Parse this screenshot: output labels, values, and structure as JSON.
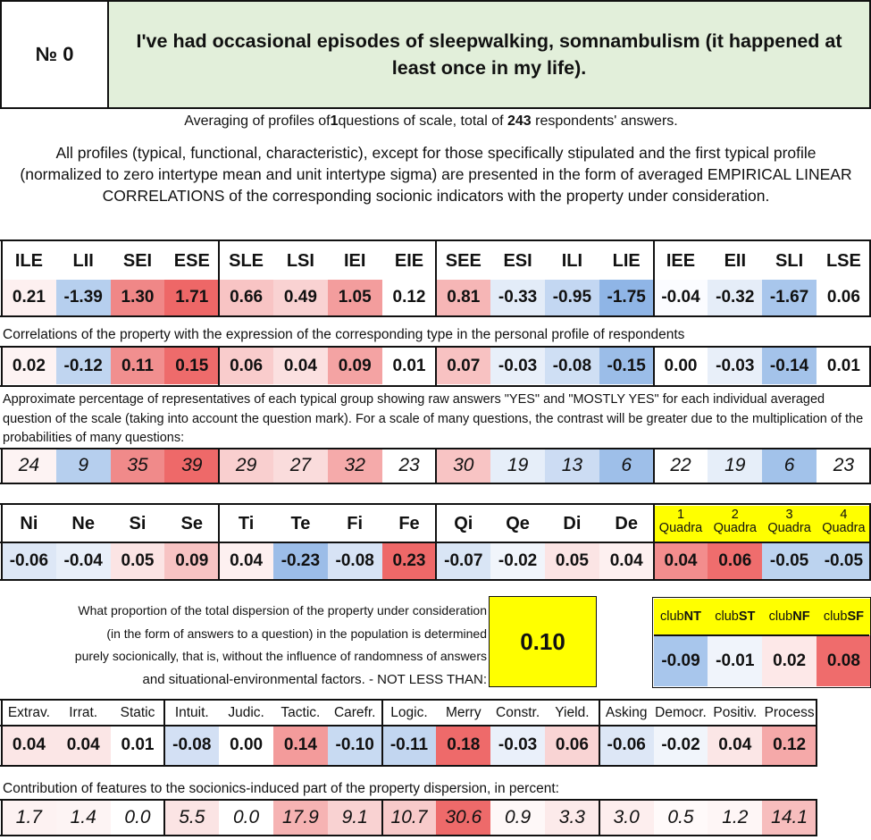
{
  "header": {
    "number_label": "№ 0",
    "question": "I've had occasional episodes of sleepwalking, somnambulism (it happened at least once in my life)."
  },
  "averaging": {
    "prefix": "Averaging of profiles of",
    "questions": "1",
    "middle": "questions of scale, total of",
    "respondents": "243",
    "suffix": "respondents' answers."
  },
  "intro_text": "All profiles (typical, functional, characteristic), except for those specifically stipulated and the first typical profile (normalized to zero intertype mean and unit intertype sigma) are presented in the form of averaged EMPIRICAL LINEAR CORRELATIONS of the corresponding socionic indicators with the property under consideration.",
  "types": {
    "labels": [
      "ILE",
      "LII",
      "SEI",
      "ESE",
      "SLE",
      "LSI",
      "IEI",
      "EIE",
      "SEE",
      "ESI",
      "ILI",
      "LIE",
      "IEE",
      "EII",
      "SLI",
      "LSE"
    ],
    "profile": [
      "0.21",
      "-1.39",
      "1.30",
      "1.71",
      "0.66",
      "0.49",
      "1.05",
      "0.12",
      "0.81",
      "-0.33",
      "-0.95",
      "-1.75",
      "-0.04",
      "-0.32",
      "-1.67",
      "0.06"
    ],
    "profile_colors": [
      "#fdf0f0",
      "#b6cfee",
      "#f08787",
      "#ee6767",
      "#f8c4c4",
      "#f9d2d2",
      "#f39d9d",
      "#ffffff",
      "#f6b6b6",
      "#e3ecf8",
      "#c3d7f2",
      "#8fb5e6",
      "#fbfcff",
      "#e5edf8",
      "#a8c6ec",
      "#ffffff"
    ],
    "corr_caption": "Correlations of the property with the expression of the corresponding type in the personal profile of respondents",
    "corr": [
      "0.02",
      "-0.12",
      "0.11",
      "0.15",
      "0.06",
      "0.04",
      "0.09",
      "0.01",
      "0.07",
      "-0.03",
      "-0.08",
      "-0.15",
      "0.00",
      "-0.03",
      "-0.14",
      "0.01"
    ],
    "corr_colors": [
      "#fdf3f3",
      "#c0d5f0",
      "#f18f8f",
      "#ee6b6b",
      "#f9cccc",
      "#fbe0e0",
      "#f4a3a3",
      "#ffffff",
      "#f8c2c2",
      "#e8eff9",
      "#cfdff4",
      "#9bbde8",
      "#ffffff",
      "#e8eff9",
      "#a4c3ea",
      "#ffffff"
    ],
    "pct_caption": "Approximate percentage of representatives of each typical group showing raw answers \"YES\" and \"MOSTLY YES\" for each individual averaged question of the scale (taking into account the question mark). For a scale of many questions, the contrast will be greater due to the multiplication of the probabilities of many questions:",
    "pct": [
      "24",
      "9",
      "35",
      "39",
      "29",
      "27",
      "32",
      "23",
      "30",
      "19",
      "13",
      "6",
      "22",
      "19",
      "6",
      "23"
    ],
    "pct_colors": [
      "#fdf3f3",
      "#b6cfee",
      "#f08a8a",
      "#ee6969",
      "#f9cfcf",
      "#fadcdc",
      "#f5aaaa",
      "#ffffff",
      "#f8c4c4",
      "#e6eef9",
      "#ccdcf3",
      "#9ebfe9",
      "#ffffff",
      "#e6eef9",
      "#a2c2ea",
      "#ffffff"
    ]
  },
  "functions": {
    "labels": [
      "Ni",
      "Ne",
      "Si",
      "Se",
      "Ti",
      "Te",
      "Fi",
      "Fe",
      "Qi",
      "Qe",
      "Di",
      "De"
    ],
    "values": [
      "-0.06",
      "-0.04",
      "0.05",
      "0.09",
      "0.04",
      "-0.23",
      "-0.08",
      "0.23",
      "-0.07",
      "-0.02",
      "0.05",
      "0.04"
    ],
    "colors": [
      "#dde7f6",
      "#e8eff9",
      "#fbe4e4",
      "#f7c3c3",
      "#fdf0f0",
      "#9cbde8",
      "#d7e3f5",
      "#ee6868",
      "#d9e5f5",
      "#f1f5fb",
      "#fbe4e4",
      "#fdf0f0"
    ]
  },
  "quadras": {
    "nums": [
      "1",
      "2",
      "3",
      "4"
    ],
    "word": "Quadra",
    "values": [
      "0.04",
      "0.06",
      "-0.05",
      "-0.05"
    ],
    "colors": [
      "#f38d8d",
      "#ef6d6d",
      "#bcd3ef",
      "#bcd3ef"
    ]
  },
  "dispersion": {
    "lines": [
      "What proportion of the total dispersion of the property under consideration",
      "(in the form of answers to a question) in the population is determined",
      "purely socionically, that is, without the influence of randomness of answers",
      "and situational-environmental factors. - NOT LESS THAN:"
    ],
    "value": "0.10"
  },
  "clubs": {
    "prefix": "club",
    "names": [
      "NT",
      "ST",
      "NF",
      "SF"
    ],
    "values": [
      "-0.09",
      "-0.01",
      "0.02",
      "0.08"
    ],
    "colors": [
      "#a8c6ec",
      "#f0f4fb",
      "#fde8e8",
      "#ef6c6c"
    ]
  },
  "traits": {
    "labels": [
      "Extrav.",
      "Irrat.",
      "Static",
      "Intuit.",
      "Judic.",
      "Tactic.",
      "Carefr.",
      "Logic.",
      "Merry",
      "Constr.",
      "Yield.",
      "Asking",
      "Democr.",
      "Positiv.",
      "Process"
    ],
    "values": [
      "0.04",
      "0.04",
      "0.01",
      "-0.08",
      "0.00",
      "0.14",
      "-0.10",
      "-0.11",
      "0.18",
      "-0.03",
      "0.06",
      "-0.06",
      "-0.02",
      "0.04",
      "0.12"
    ],
    "colors": [
      "#fbe6e6",
      "#fbe6e6",
      "#ffffff",
      "#d3e0f4",
      "#ffffff",
      "#f39b9b",
      "#c8daf2",
      "#c2d6f0",
      "#ee6a6a",
      "#eaf0fa",
      "#f9d4d4",
      "#dde7f6",
      "#f1f5fb",
      "#fbe6e6",
      "#f5a9a9"
    ],
    "contrib_caption": "Contribution of features to the socionics-induced part of the property dispersion, in percent:",
    "contrib": [
      "1.7",
      "1.4",
      "0.0",
      "5.5",
      "0.0",
      "17.9",
      "9.1",
      "10.7",
      "30.6",
      "0.9",
      "3.3",
      "3.0",
      "0.5",
      "1.2",
      "14.1"
    ],
    "contrib_colors": [
      "#fdf2f2",
      "#fdf4f4",
      "#ffffff",
      "#fbe4e4",
      "#ffffff",
      "#f6b3b3",
      "#f9d2d2",
      "#f8caca",
      "#ee6a6a",
      "#fef8f8",
      "#fceaea",
      "#fdeeee",
      "#fffafa",
      "#fef6f6",
      "#f7bdbd"
    ]
  }
}
